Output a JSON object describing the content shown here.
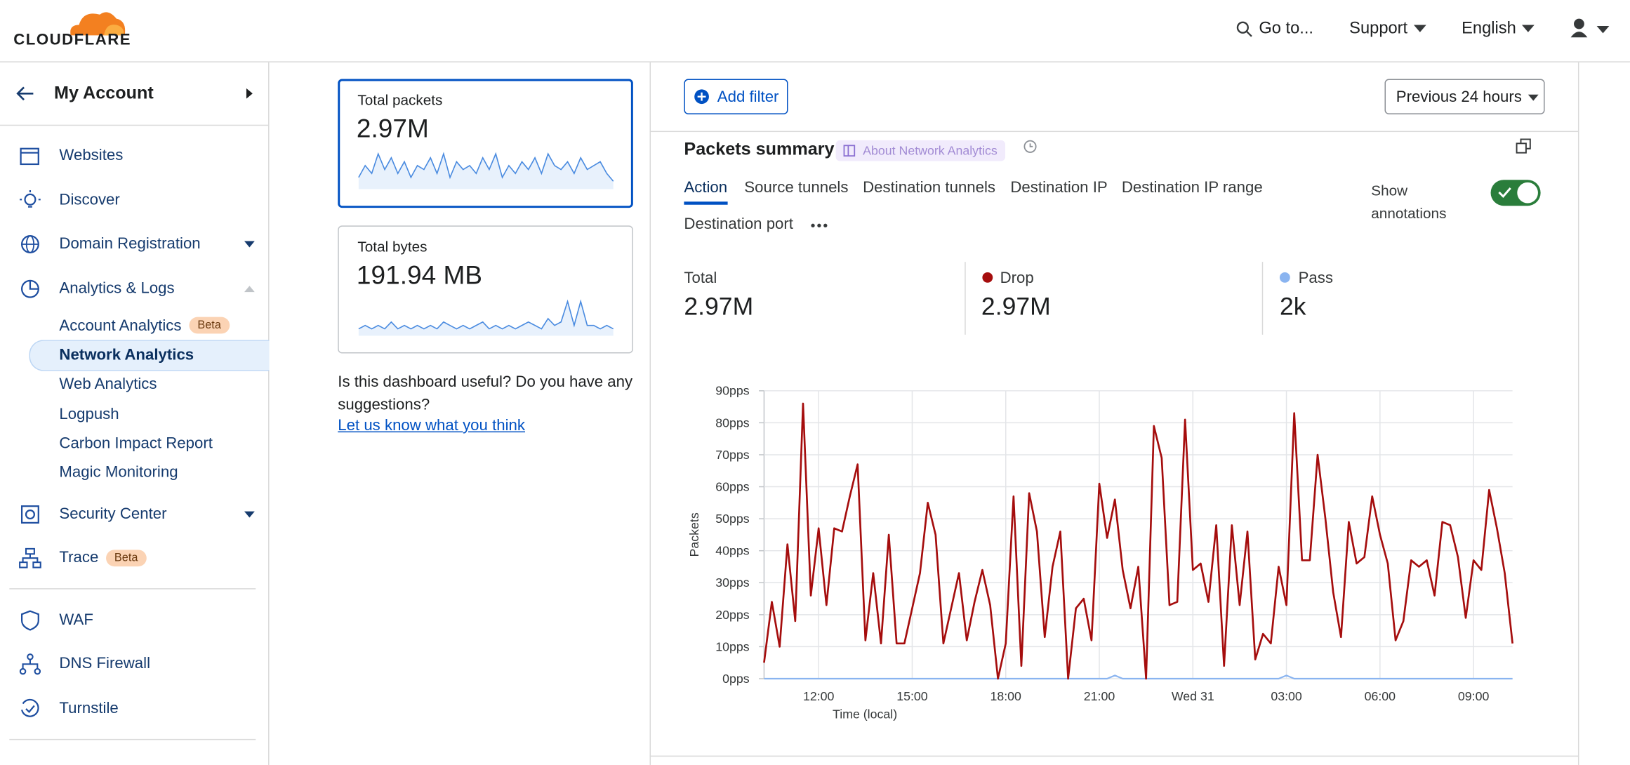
{
  "header": {
    "logo": "CLOUDFLARE",
    "search": "Go to...",
    "support": "Support",
    "language": "English"
  },
  "sidebar": {
    "account": "My Account",
    "items": [
      "Websites",
      "Discover",
      "Domain Registration",
      "Analytics & Logs"
    ],
    "sub": [
      "Account Analytics",
      "Network Analytics",
      "Web Analytics",
      "Logpush",
      "Carbon Impact Report",
      "Magic Monitoring"
    ],
    "sub_badge": "Beta",
    "items2": [
      "Security Center",
      "Trace"
    ],
    "trace_badge": "Beta",
    "items3": [
      "WAF",
      "DNS Firewall",
      "Turnstile"
    ]
  },
  "cards": [
    {
      "label": "Total packets",
      "value": "2.97M",
      "spark": [
        3,
        6,
        4,
        9,
        5,
        8,
        4,
        7,
        3,
        6,
        5,
        8,
        4,
        9,
        3,
        7,
        5,
        6,
        4,
        8,
        5,
        9,
        3,
        6,
        4,
        7,
        5,
        8,
        4,
        9,
        6,
        5,
        7,
        4,
        8,
        5,
        6,
        7,
        4,
        2
      ]
    },
    {
      "label": "Total bytes",
      "value": "191.94 MB",
      "spark": [
        2,
        3,
        2,
        3,
        2,
        4,
        2,
        3,
        2,
        3,
        2,
        3,
        2,
        4,
        3,
        2,
        3,
        2,
        3,
        4,
        2,
        3,
        2,
        3,
        2,
        3,
        4,
        3,
        2,
        5,
        3,
        4,
        10,
        3,
        10,
        3,
        3,
        2,
        3,
        2
      ]
    }
  ],
  "feedback": {
    "text": "Is this dashboard useful? Do you have any suggestions?",
    "link": "Let us know what you think"
  },
  "toolbar": {
    "add_filter": "Add filter",
    "range": "Previous 24 hours"
  },
  "summary": {
    "title": "Packets summary",
    "about": "About Network Analytics",
    "tabs": [
      "Action",
      "Source tunnels",
      "Destination tunnels",
      "Destination IP",
      "Destination IP range",
      "Destination port"
    ],
    "annotations": "Show annotations",
    "total_label": "Total",
    "total": "2.97M",
    "drop": "2.97M",
    "pass": "2k"
  },
  "chart_data": {
    "type": "line",
    "x_label": "Time (local)",
    "y_label": "Packets",
    "categories": [
      null,
      null,
      null,
      null,
      null,
      null,
      null,
      "12:00",
      null,
      null,
      null,
      null,
      null,
      null,
      null,
      null,
      null,
      null,
      null,
      "15:00",
      null,
      null,
      null,
      null,
      null,
      null,
      null,
      null,
      null,
      null,
      null,
      "18:00",
      null,
      null,
      null,
      null,
      null,
      null,
      null,
      null,
      null,
      null,
      null,
      "21:00",
      null,
      null,
      null,
      null,
      null,
      null,
      null,
      null,
      null,
      null,
      null,
      "Wed 31",
      null,
      null,
      null,
      null,
      null,
      null,
      null,
      null,
      null,
      null,
      null,
      "03:00",
      null,
      null,
      null,
      null,
      null,
      null,
      null,
      null,
      null,
      null,
      null,
      "06:00",
      null,
      null,
      null,
      null,
      null,
      null,
      null,
      null,
      null,
      null,
      null,
      "09:00",
      null,
      null,
      null,
      null,
      null
    ],
    "series": [
      {
        "name": "Drop",
        "color": "#a50d0d",
        "values": [
          5,
          24,
          10,
          42,
          18,
          86,
          26,
          47,
          23,
          47,
          46,
          57,
          67,
          12,
          33,
          11,
          45,
          11,
          11,
          22,
          33,
          55,
          45,
          11,
          22,
          33,
          12,
          24,
          34,
          23,
          0,
          11,
          57,
          4,
          58,
          46,
          13,
          35,
          46,
          0,
          22,
          25,
          12,
          61,
          44,
          56,
          34,
          22,
          35,
          0,
          79,
          69,
          23,
          24,
          81,
          34,
          36,
          24,
          48,
          4,
          48,
          23,
          46,
          6,
          14,
          11,
          35,
          23,
          83,
          37,
          37,
          70,
          50,
          27,
          13,
          49,
          36,
          38,
          57,
          45,
          36,
          12,
          18,
          37,
          35,
          37,
          26,
          49,
          48,
          38,
          19,
          37,
          34,
          59,
          47,
          33,
          11
        ]
      },
      {
        "name": "Pass",
        "color": "#8ab4f0",
        "values": [
          0,
          0,
          0,
          0,
          0,
          0,
          0,
          0,
          0,
          0,
          0,
          0,
          0,
          0,
          0,
          0,
          0,
          0,
          0,
          0,
          0,
          0,
          0,
          0,
          0,
          0,
          0,
          0,
          0,
          0,
          0,
          0,
          0,
          0,
          0,
          0,
          0,
          0,
          0,
          0,
          0,
          0,
          0,
          0,
          0,
          1,
          0,
          0,
          0,
          0,
          0,
          0,
          0,
          0,
          0,
          0,
          0,
          0,
          0,
          0,
          0,
          0,
          0,
          0,
          0,
          0,
          0,
          1,
          0,
          0,
          0,
          0,
          0,
          0,
          0,
          0,
          0,
          0,
          0,
          0,
          0,
          0,
          0,
          0,
          0,
          0,
          0,
          0,
          0,
          0,
          0,
          0,
          0,
          0,
          0,
          0,
          0
        ]
      }
    ],
    "ylim": [
      0,
      90
    ],
    "yticks": [
      {
        "value": 0,
        "label": "0pps"
      },
      {
        "value": 10,
        "label": "10pps"
      },
      {
        "value": 20,
        "label": "20pps"
      },
      {
        "value": 30,
        "label": "30pps"
      },
      {
        "value": 40,
        "label": "40pps"
      },
      {
        "value": 50,
        "label": "50pps"
      },
      {
        "value": 60,
        "label": "60pps"
      },
      {
        "value": 70,
        "label": "70pps"
      },
      {
        "value": 80,
        "label": "80pps"
      },
      {
        "value": 90,
        "label": "90pps"
      }
    ],
    "grid": true
  }
}
